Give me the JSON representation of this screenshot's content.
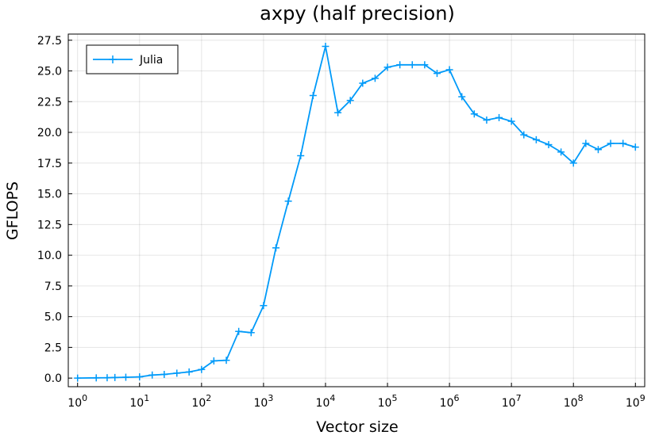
{
  "chart_data": {
    "type": "line",
    "title": "axpy (half precision)",
    "xlabel": "Vector size",
    "ylabel": "GFLOPS",
    "xscale": "log10",
    "xlim_exp": [
      -0.15,
      9.15
    ],
    "ylim": [
      -0.7,
      28.0
    ],
    "grid": true,
    "legend_position": "top-left",
    "xticks": [
      {
        "base": "10",
        "exp": "0"
      },
      {
        "base": "10",
        "exp": "1"
      },
      {
        "base": "10",
        "exp": "2"
      },
      {
        "base": "10",
        "exp": "3"
      },
      {
        "base": "10",
        "exp": "4"
      },
      {
        "base": "10",
        "exp": "5"
      },
      {
        "base": "10",
        "exp": "6"
      },
      {
        "base": "10",
        "exp": "7"
      },
      {
        "base": "10",
        "exp": "8"
      },
      {
        "base": "10",
        "exp": "9"
      }
    ],
    "yticks": [
      "0.0",
      "2.5",
      "5.0",
      "7.5",
      "10.0",
      "12.5",
      "15.0",
      "17.5",
      "20.0",
      "22.5",
      "25.0",
      "27.5"
    ],
    "series": [
      {
        "name": "Julia",
        "color": "#009af9",
        "marker": "+",
        "x": [
          1,
          2,
          3,
          4,
          6,
          10,
          16,
          25,
          40,
          63,
          100,
          158,
          251,
          398,
          631,
          1000,
          1585,
          2512,
          3981,
          6310,
          10000,
          15849,
          25119,
          39811,
          63096,
          100000,
          158489,
          251189,
          398107,
          630957,
          1000000,
          1584893,
          2511886,
          3981072,
          6309573,
          10000000,
          15848932,
          25118864,
          39810717,
          63095734,
          100000000,
          158489319,
          251188643,
          398107171,
          630957344,
          1000000000
        ],
        "y": [
          0.0,
          0.02,
          0.03,
          0.05,
          0.07,
          0.1,
          0.25,
          0.3,
          0.4,
          0.5,
          0.7,
          1.4,
          1.45,
          3.8,
          3.7,
          5.9,
          10.6,
          14.4,
          18.1,
          23.0,
          27.0,
          21.6,
          22.6,
          24.0,
          24.4,
          25.3,
          25.5,
          25.5,
          25.5,
          24.8,
          25.1,
          22.9,
          21.5,
          21.0,
          21.2,
          20.9,
          19.8,
          19.4,
          19.0,
          18.4,
          17.5,
          19.1,
          18.6,
          19.1,
          19.1,
          18.8
        ]
      }
    ]
  }
}
